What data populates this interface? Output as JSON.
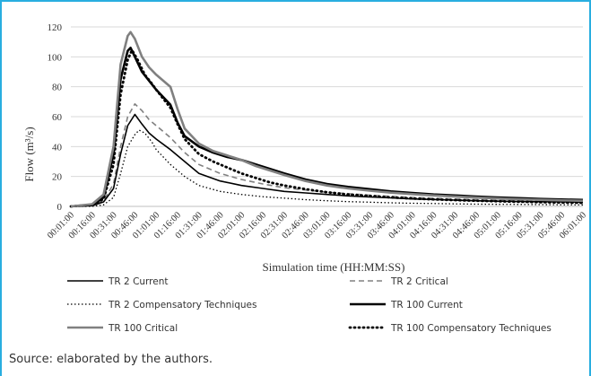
{
  "chart_data": {
    "type": "line",
    "title": "",
    "xlabel": "Simulation time (HH:MM:SS)",
    "ylabel": "Flow (m³/s)",
    "ylim": [
      0,
      120
    ],
    "yticks": [
      "0",
      "20",
      "40",
      "60",
      "80",
      "100",
      "120"
    ],
    "grid": true,
    "legend_position": "bottom",
    "x": [
      "00:01:00",
      "00:16:00",
      "00:31:00",
      "00:46:00",
      "01:01:00",
      "01:16:00",
      "01:31:00",
      "01:46:00",
      "02:01:00",
      "02:16:00",
      "02:31:00",
      "02:46:00",
      "03:01:00",
      "03:16:00",
      "03:31:00",
      "03:46:00",
      "04:01:00",
      "04:16:00",
      "04:31:00",
      "04:46:00",
      "05:01:00",
      "05:16:00",
      "05:31:00",
      "05:46:00",
      "06:01:00"
    ],
    "series": [
      {
        "name": "TR 2 Current",
        "color": "#000000",
        "dash": "solid",
        "points": [
          [
            1,
            0
          ],
          [
            16,
            0.5
          ],
          [
            24,
            3
          ],
          [
            31,
            12
          ],
          [
            36,
            35
          ],
          [
            41,
            54
          ],
          [
            46,
            61.5
          ],
          [
            51,
            55
          ],
          [
            56,
            49
          ],
          [
            61,
            45
          ],
          [
            71,
            38
          ],
          [
            81,
            30
          ],
          [
            91,
            22
          ],
          [
            106,
            17
          ],
          [
            121,
            14
          ],
          [
            136,
            12
          ],
          [
            151,
            10
          ],
          [
            166,
            9
          ],
          [
            181,
            8
          ],
          [
            196,
            7
          ],
          [
            211,
            6.3
          ],
          [
            226,
            5.7
          ],
          [
            241,
            5
          ],
          [
            256,
            4.6
          ],
          [
            271,
            4.2
          ],
          [
            286,
            3.8
          ],
          [
            301,
            3.5
          ],
          [
            316,
            3.3
          ],
          [
            331,
            3.1
          ],
          [
            346,
            3
          ],
          [
            361,
            2.8
          ]
        ]
      },
      {
        "name": "TR 2 Critical",
        "color": "#808080",
        "dash": "dashed",
        "points": [
          [
            1,
            0
          ],
          [
            16,
            0.5
          ],
          [
            24,
            4
          ],
          [
            31,
            15
          ],
          [
            36,
            40
          ],
          [
            41,
            60
          ],
          [
            46,
            68.5
          ],
          [
            51,
            64
          ],
          [
            56,
            58
          ],
          [
            61,
            54
          ],
          [
            71,
            46
          ],
          [
            81,
            36
          ],
          [
            91,
            28
          ],
          [
            106,
            22
          ],
          [
            121,
            18
          ],
          [
            136,
            15
          ],
          [
            151,
            12.5
          ],
          [
            166,
            11
          ],
          [
            181,
            9.5
          ],
          [
            196,
            8.5
          ],
          [
            211,
            7.5
          ],
          [
            226,
            6.7
          ],
          [
            241,
            6
          ],
          [
            256,
            5.4
          ],
          [
            271,
            4.9
          ],
          [
            286,
            4.5
          ],
          [
            301,
            4.1
          ],
          [
            316,
            3.8
          ],
          [
            331,
            3.5
          ],
          [
            346,
            3.3
          ],
          [
            361,
            3.1
          ]
        ]
      },
      {
        "name": "TR 2 Compensatory Techniques",
        "color": "#000000",
        "dash": "dotted",
        "points": [
          [
            1,
            0
          ],
          [
            16,
            0
          ],
          [
            24,
            1
          ],
          [
            31,
            6
          ],
          [
            36,
            22
          ],
          [
            41,
            40
          ],
          [
            46,
            48
          ],
          [
            49,
            51
          ],
          [
            53,
            49
          ],
          [
            58,
            43
          ],
          [
            61,
            38
          ],
          [
            71,
            28
          ],
          [
            81,
            20
          ],
          [
            91,
            14
          ],
          [
            106,
            10
          ],
          [
            121,
            8
          ],
          [
            136,
            6.5
          ],
          [
            151,
            5.5
          ],
          [
            166,
            4.5
          ],
          [
            181,
            3.8
          ],
          [
            196,
            3.2
          ],
          [
            211,
            2.8
          ],
          [
            226,
            2.4
          ],
          [
            241,
            2.1
          ],
          [
            256,
            1.9
          ],
          [
            271,
            1.7
          ],
          [
            286,
            1.5
          ],
          [
            301,
            1.4
          ],
          [
            316,
            1.3
          ],
          [
            331,
            1.2
          ],
          [
            346,
            1.1
          ],
          [
            361,
            1
          ]
        ]
      },
      {
        "name": "TR 100 Current",
        "color": "#000000",
        "dash": "solid-thick",
        "points": [
          [
            1,
            0
          ],
          [
            16,
            1
          ],
          [
            24,
            6
          ],
          [
            31,
            35
          ],
          [
            36,
            85
          ],
          [
            41,
            104
          ],
          [
            43,
            106
          ],
          [
            46,
            100
          ],
          [
            51,
            90
          ],
          [
            56,
            84
          ],
          [
            61,
            78
          ],
          [
            71,
            68
          ],
          [
            76,
            56
          ],
          [
            81,
            47
          ],
          [
            91,
            40
          ],
          [
            101,
            36
          ],
          [
            111,
            33
          ],
          [
            121,
            31
          ],
          [
            131,
            28
          ],
          [
            141,
            25
          ],
          [
            151,
            22
          ],
          [
            166,
            18
          ],
          [
            181,
            15
          ],
          [
            196,
            13
          ],
          [
            211,
            11.5
          ],
          [
            226,
            10
          ],
          [
            241,
            9
          ],
          [
            256,
            8
          ],
          [
            271,
            7.3
          ],
          [
            286,
            6.6
          ],
          [
            301,
            6
          ],
          [
            316,
            5.5
          ],
          [
            331,
            5
          ],
          [
            346,
            4.6
          ],
          [
            361,
            4.3
          ]
        ]
      },
      {
        "name": "TR 100 Critical",
        "color": "#808080",
        "dash": "solid-thick",
        "points": [
          [
            1,
            0
          ],
          [
            16,
            1.5
          ],
          [
            24,
            8
          ],
          [
            31,
            40
          ],
          [
            36,
            95
          ],
          [
            41,
            114
          ],
          [
            43,
            116.5
          ],
          [
            46,
            112
          ],
          [
            51,
            100
          ],
          [
            56,
            93
          ],
          [
            61,
            88
          ],
          [
            71,
            80
          ],
          [
            76,
            65
          ],
          [
            81,
            52
          ],
          [
            91,
            42
          ],
          [
            101,
            37
          ],
          [
            111,
            34
          ],
          [
            121,
            31
          ],
          [
            131,
            27
          ],
          [
            141,
            24
          ],
          [
            151,
            21
          ],
          [
            166,
            17
          ],
          [
            181,
            14
          ],
          [
            196,
            12
          ],
          [
            211,
            10.5
          ],
          [
            226,
            9.2
          ],
          [
            241,
            8.2
          ],
          [
            256,
            7.3
          ],
          [
            271,
            6.6
          ],
          [
            286,
            5.9
          ],
          [
            301,
            5.3
          ],
          [
            316,
            4.8
          ],
          [
            331,
            4.4
          ],
          [
            346,
            4
          ],
          [
            361,
            3.7
          ]
        ]
      },
      {
        "name": "TR 100 Compensatory Techniques",
        "color": "#000000",
        "dash": "dotted-thick",
        "points": [
          [
            1,
            0
          ],
          [
            16,
            1
          ],
          [
            24,
            5
          ],
          [
            31,
            28
          ],
          [
            36,
            75
          ],
          [
            41,
            98
          ],
          [
            44,
            104.5
          ],
          [
            48,
            98
          ],
          [
            53,
            88
          ],
          [
            58,
            82
          ],
          [
            61,
            78
          ],
          [
            71,
            66
          ],
          [
            76,
            55
          ],
          [
            81,
            45
          ],
          [
            91,
            35
          ],
          [
            101,
            30
          ],
          [
            111,
            26
          ],
          [
            121,
            22
          ],
          [
            131,
            19
          ],
          [
            141,
            16
          ],
          [
            151,
            14
          ],
          [
            166,
            11.5
          ],
          [
            181,
            9.5
          ],
          [
            196,
            8
          ],
          [
            211,
            7
          ],
          [
            226,
            6
          ],
          [
            241,
            5.3
          ],
          [
            256,
            4.7
          ],
          [
            271,
            4.2
          ],
          [
            286,
            3.8
          ],
          [
            301,
            3.4
          ],
          [
            316,
            3.1
          ],
          [
            331,
            2.8
          ],
          [
            346,
            2.6
          ],
          [
            361,
            2.4
          ]
        ]
      }
    ]
  },
  "source_text": "Source: elaborated by the authors."
}
